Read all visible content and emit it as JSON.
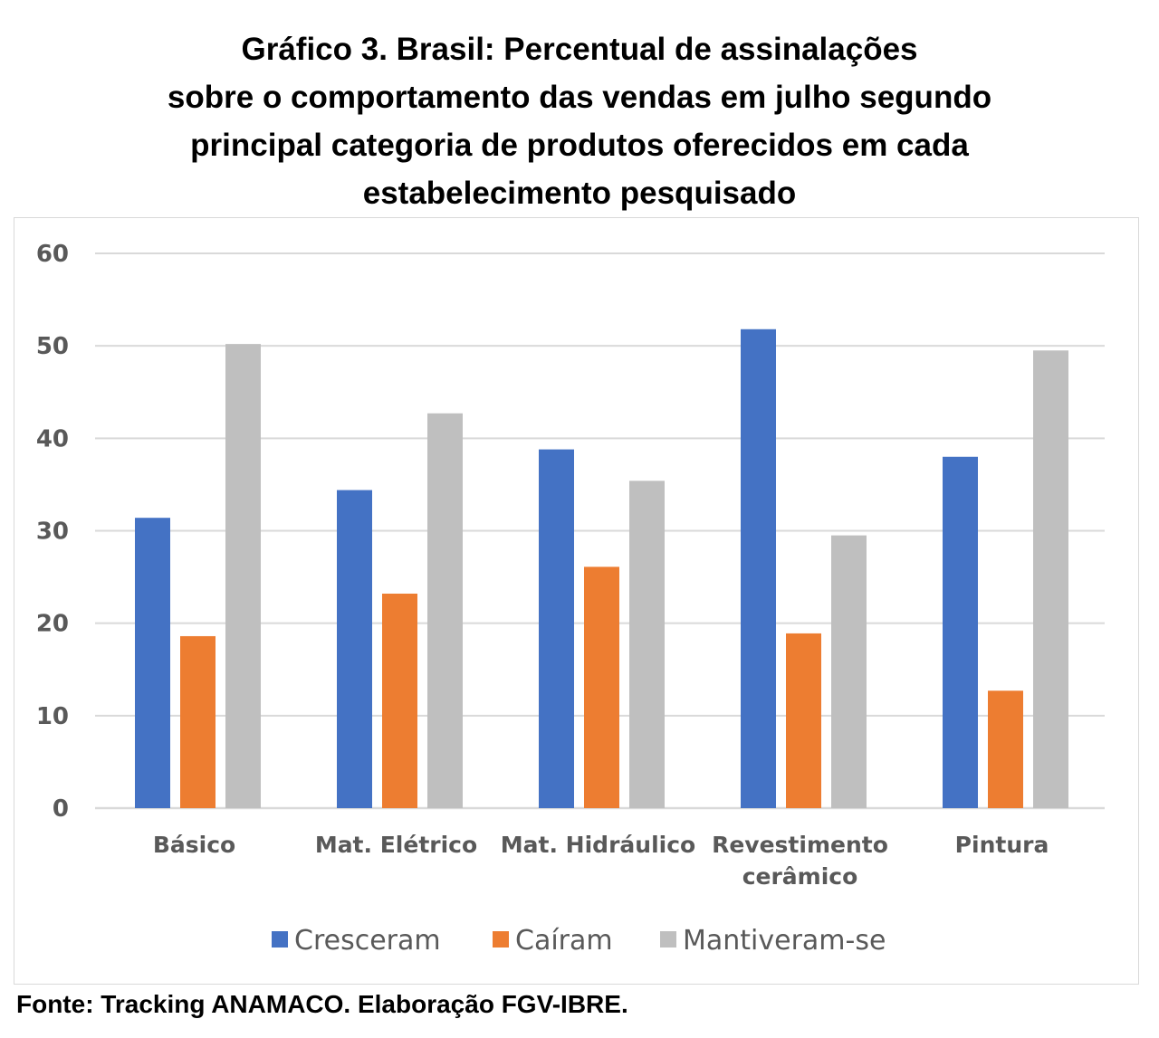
{
  "chart_data": {
    "type": "bar",
    "title_lines": [
      "Gráfico 3. Brasil: Percentual de assinalações",
      "sobre o comportamento das vendas em julho segundo",
      "principal categoria de produtos oferecidos em cada",
      "estabelecimento pesquisado"
    ],
    "categories": [
      [
        "Básico"
      ],
      [
        "Mat. Elétrico"
      ],
      [
        "Mat. Hidráulico"
      ],
      [
        "Revestimento",
        "cerâmico"
      ],
      [
        "Pintura"
      ]
    ],
    "series": [
      {
        "name": "Cresceram",
        "color": "#4472c4",
        "values": [
          31.4,
          34.4,
          38.8,
          51.8,
          38.0
        ]
      },
      {
        "name": "Caíram",
        "color": "#ed7d31",
        "values": [
          18.6,
          23.2,
          26.1,
          18.9,
          12.7
        ]
      },
      {
        "name": "Mantiveram-se",
        "color": "#bfbfbf",
        "values": [
          50.2,
          42.7,
          35.4,
          29.5,
          49.5
        ]
      }
    ],
    "ylim": [
      0,
      60
    ],
    "yticks": [
      0,
      10,
      20,
      30,
      40,
      50,
      60
    ],
    "grid": true,
    "legend_position": "bottom"
  },
  "source": "Fonte: Tracking ANAMACO. Elaboração FGV-IBRE."
}
